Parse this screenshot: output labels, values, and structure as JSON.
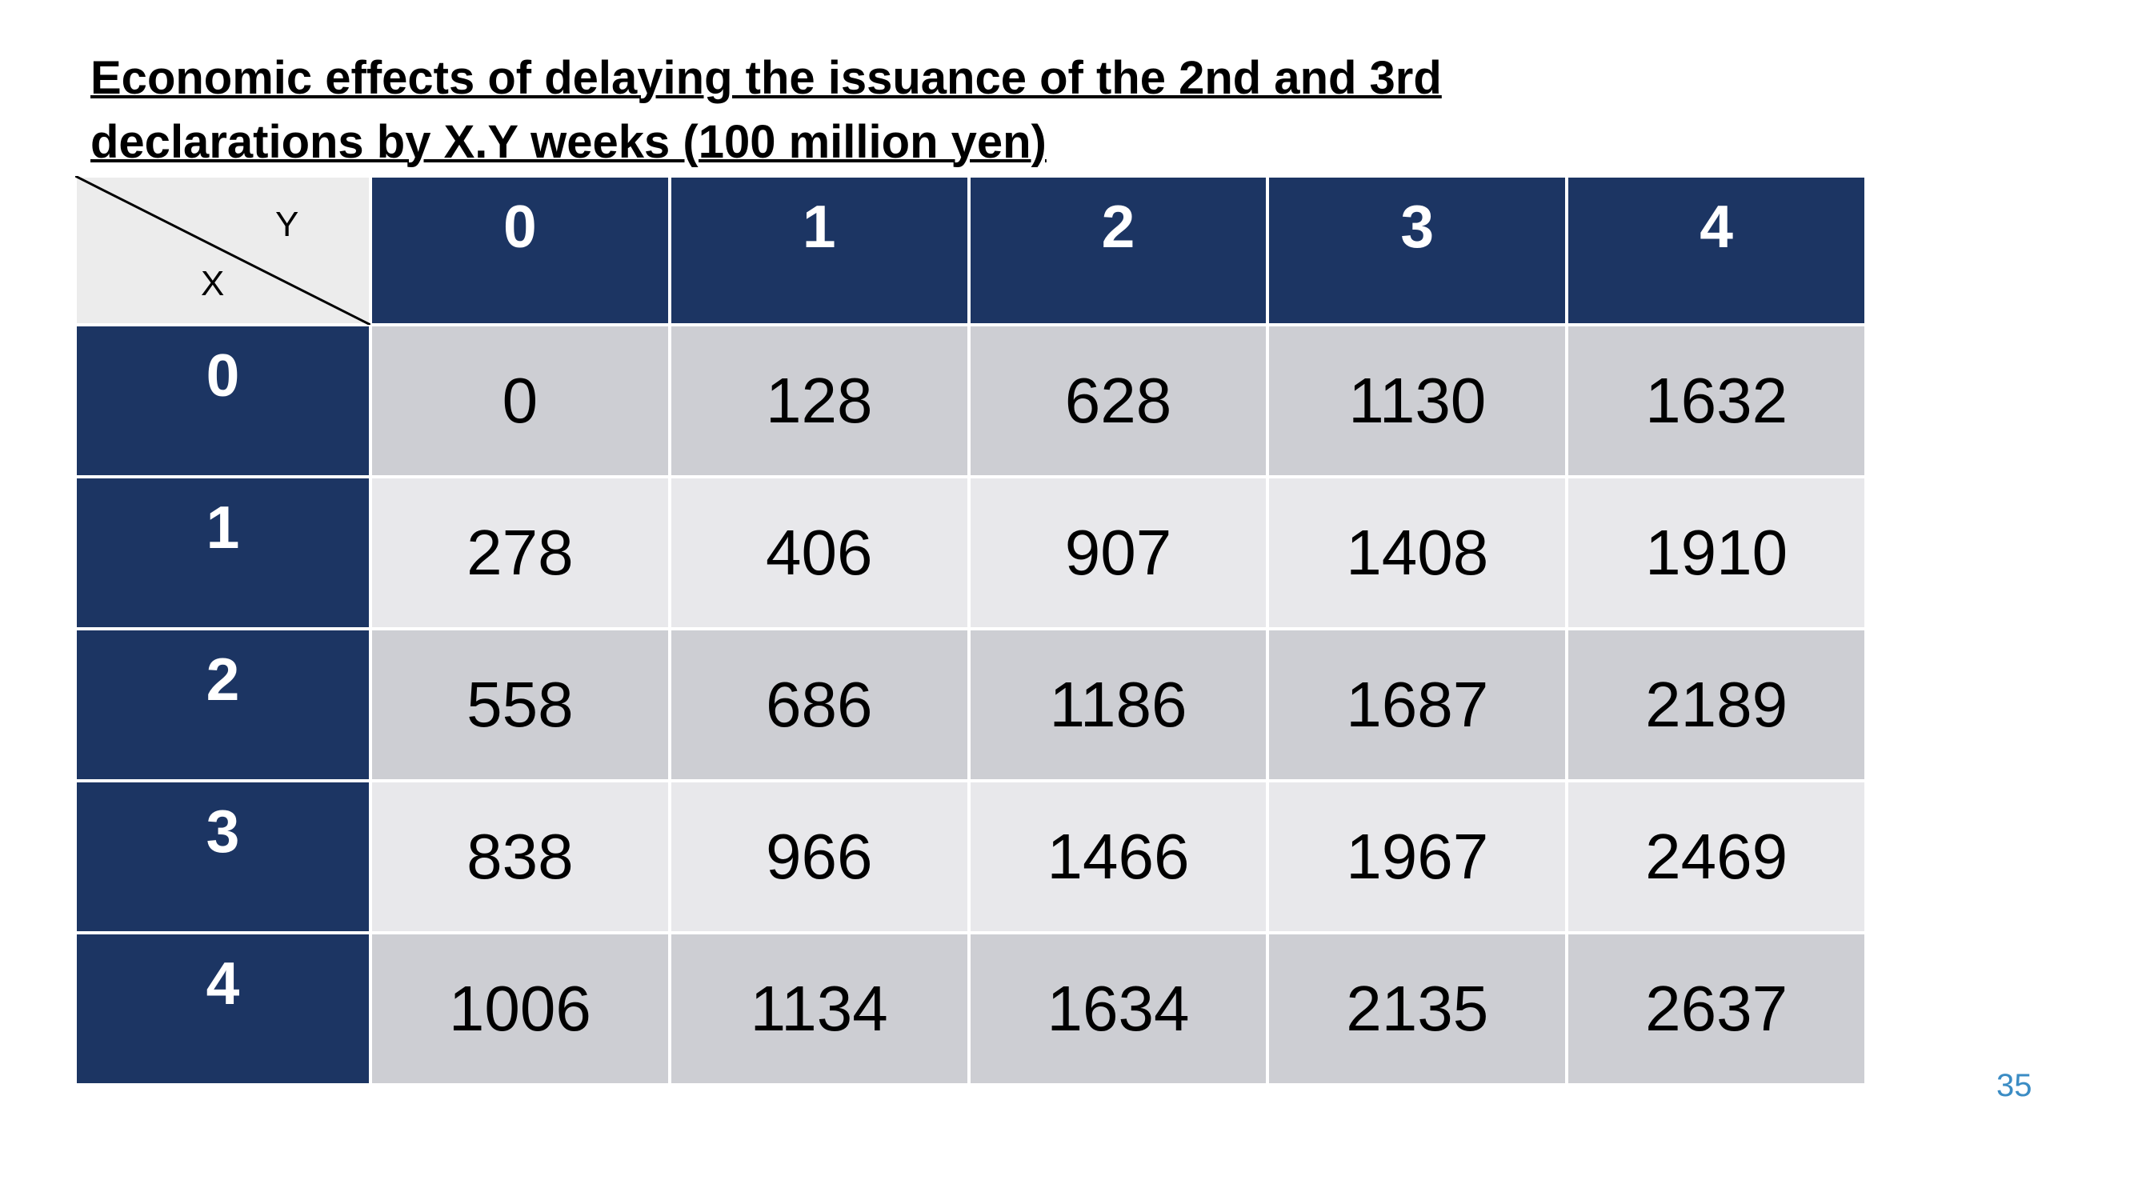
{
  "header": {
    "title_lines": [
      "Economic effects of delaying the issuance of the 2nd and 3rd",
      "declarations by X.Y weeks (100 million yen)"
    ]
  },
  "table": {
    "corner": {
      "y_label": "Y",
      "x_label": "X"
    },
    "columns": [
      0,
      1,
      2,
      3,
      4
    ],
    "rows": [
      {
        "label": 0,
        "values": [
          0,
          128,
          628,
          1130,
          1632
        ]
      },
      {
        "label": 1,
        "values": [
          278,
          406,
          907,
          1408,
          1910
        ]
      },
      {
        "label": 2,
        "values": [
          558,
          686,
          1186,
          1687,
          2189
        ]
      },
      {
        "label": 3,
        "values": [
          838,
          966,
          1466,
          1967,
          2469
        ]
      },
      {
        "label": 4,
        "values": [
          1006,
          1134,
          1634,
          2135,
          2637
        ]
      }
    ]
  },
  "footer": {
    "page_number": "35"
  }
}
